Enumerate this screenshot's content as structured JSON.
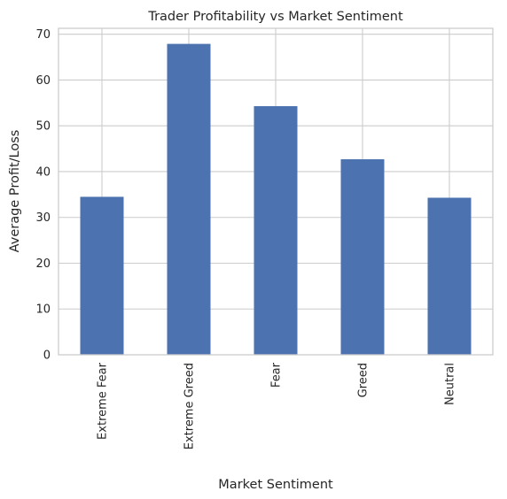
{
  "chart_data": {
    "type": "bar",
    "title": "Trader Profitability vs Market Sentiment",
    "xlabel": "Market Sentiment",
    "ylabel": "Average Profit/Loss",
    "categories": [
      "Extreme Fear",
      "Extreme Greed",
      "Fear",
      "Greed",
      "Neutral"
    ],
    "values": [
      34.5,
      67.9,
      54.3,
      42.7,
      34.3
    ],
    "ylim": [
      0,
      71.3
    ],
    "yticks": [
      0,
      10,
      20,
      30,
      40,
      50,
      60,
      70
    ],
    "grid": true,
    "bar_color": "#4c72b0",
    "grid_color": "#cccccc"
  }
}
